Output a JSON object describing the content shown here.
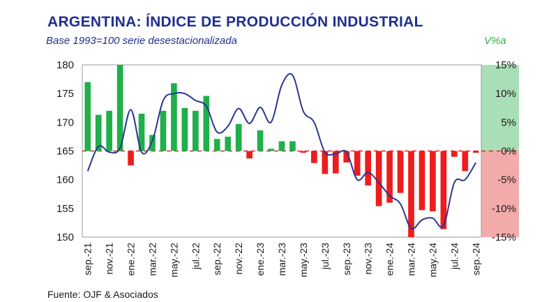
{
  "header": {
    "title": "ARGENTINA: ÍNDICE DE PRODUCCIÓN INDUSTRIAL",
    "subtitle": "Base 1993=100 serie desestacionalizada",
    "right_axis_label": "V%a"
  },
  "footer": {
    "source": "Fuente: OJF & Asociados"
  },
  "colors": {
    "positive_bar": "#1fb04a",
    "negative_bar": "#ee1c1c",
    "line": "#2b3590",
    "positive_zone": "#a9dfb6",
    "negative_zone": "#f3aaaa",
    "axis_text": "#1a1a1a"
  },
  "chart_data": {
    "type": "bar+line",
    "title": "ARGENTINA: ÍNDICE DE PRODUCCIÓN INDUSTRIAL",
    "subtitle": "Base 1993=100 serie desestacionalizada",
    "left_axis": {
      "label": "",
      "ylim": [
        150,
        180
      ],
      "ticks": [
        "150",
        "155",
        "160",
        "165",
        "170",
        "175",
        "180"
      ]
    },
    "right_axis": {
      "label": "V%a",
      "ylim": [
        -15,
        15
      ],
      "ticks": [
        "-15%",
        "-10%",
        "-5%",
        "0%",
        "5%",
        "10%",
        "15%"
      ]
    },
    "x_tick_labels": [
      "sep.-21",
      "nov.-21",
      "ene.-22",
      "mar.-22",
      "may.-22",
      "jul.-22",
      "sep.-22",
      "nov.-22",
      "ene.-23",
      "mar.-23",
      "may.-23",
      "jul.-23",
      "sep.-23",
      "nov.-23",
      "ene.-24",
      "mar.-24",
      "may.-24",
      "jul.-24",
      "sep.-24"
    ],
    "months": [
      "sep.-21",
      "oct.-21",
      "nov.-21",
      "dic.-21",
      "ene.-22",
      "feb.-22",
      "mar.-22",
      "abr.-22",
      "may.-22",
      "jun.-22",
      "jul.-22",
      "ago.-22",
      "sep.-22",
      "oct.-22",
      "nov.-22",
      "dic.-22",
      "ene.-23",
      "feb.-23",
      "mar.-23",
      "abr.-23",
      "may.-23",
      "jun.-23",
      "jul.-23",
      "ago.-23",
      "sep.-23",
      "oct.-23",
      "nov.-23",
      "dic.-23",
      "ene.-24",
      "feb.-24",
      "mar.-24",
      "abr.-24",
      "may.-24",
      "jun.-24",
      "jul.-24",
      "ago.-24",
      "sep.-24"
    ],
    "series": [
      {
        "name": "Variación interanual (%)",
        "axis": "right",
        "kind": "bar",
        "values": [
          12.0,
          6.3,
          7.0,
          15.0,
          -2.5,
          6.5,
          2.8,
          7.0,
          11.8,
          7.5,
          7.0,
          9.6,
          2.1,
          2.5,
          4.7,
          -1.3,
          3.6,
          0.4,
          1.7,
          1.7,
          -0.3,
          -2.1,
          -4.0,
          -3.9,
          -2.0,
          -4.3,
          -6.0,
          -9.6,
          -9.0,
          -7.3,
          -15.0,
          -10.3,
          -10.5,
          -13.6,
          -1.0,
          -3.5,
          -0.3
        ]
      },
      {
        "name": "Índice (1993=100)",
        "axis": "left",
        "kind": "line",
        "values": [
          161.5,
          165.8,
          164.8,
          165.5,
          172.2,
          164.8,
          166.8,
          173.8,
          175.0,
          175.0,
          173.8,
          172.8,
          168.3,
          169.3,
          172.4,
          169.8,
          172.6,
          170.0,
          176.5,
          178.2,
          171.9,
          170.0,
          164.8,
          164.5,
          164.8,
          160.0,
          161.3,
          159.5,
          157.2,
          155.8,
          151.5,
          153.0,
          153.3,
          152.0,
          159.5,
          160.0,
          163.0
        ]
      }
    ],
    "grid": false,
    "legend": "none"
  }
}
